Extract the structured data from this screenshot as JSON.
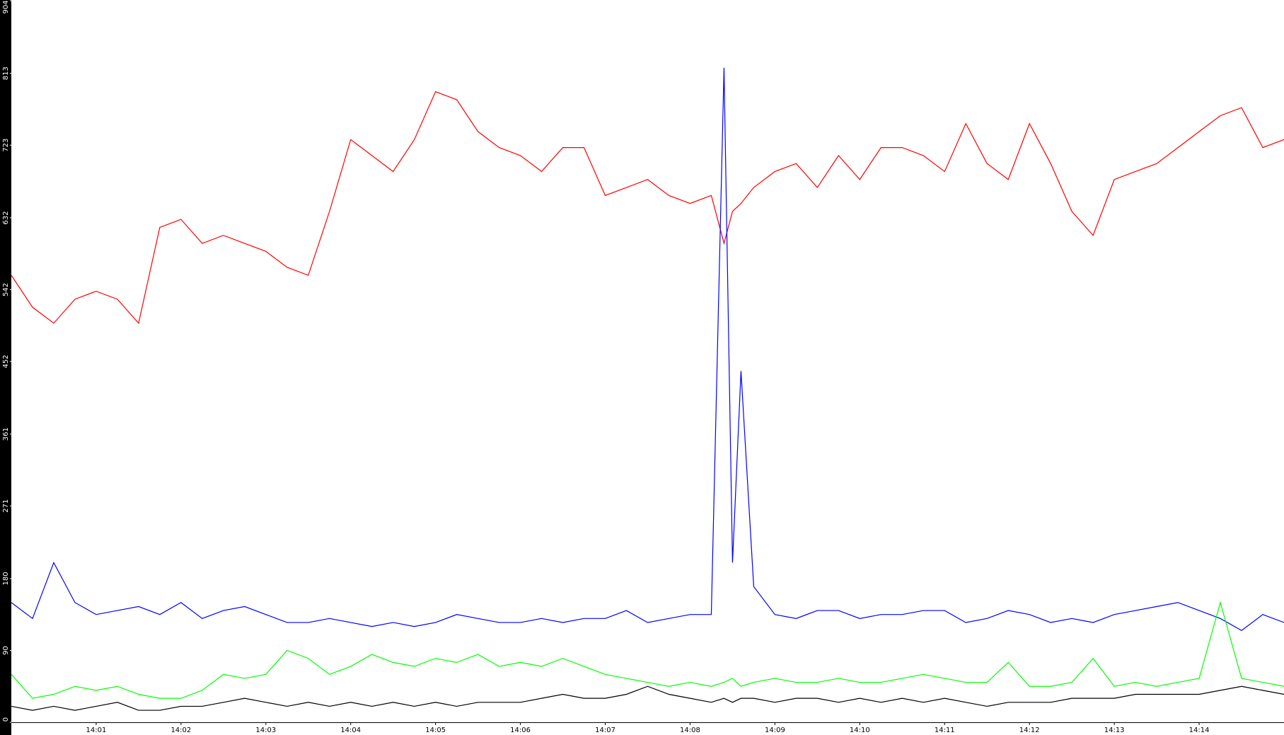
{
  "chart_data": {
    "type": "line",
    "x": [
      0,
      0.25,
      0.5,
      0.75,
      1,
      1.25,
      1.5,
      1.75,
      2,
      2.25,
      2.5,
      2.75,
      3,
      3.25,
      3.5,
      3.75,
      4,
      4.25,
      4.5,
      4.75,
      5,
      5.25,
      5.5,
      5.75,
      6,
      6.25,
      6.5,
      6.75,
      7,
      7.25,
      7.5,
      7.75,
      8,
      8.25,
      8.4,
      8.5,
      8.6,
      8.75,
      9,
      9.25,
      9.5,
      9.75,
      10,
      10.25,
      10.5,
      10.75,
      11,
      11.25,
      11.5,
      11.75,
      12,
      12.25,
      12.5,
      12.75,
      13,
      13.25,
      13.5,
      13.75,
      14,
      14.25,
      14.5,
      14.75,
      15
    ],
    "xlim": [
      0,
      15
    ],
    "xticks": [
      {
        "value": 1,
        "label": "14:01"
      },
      {
        "value": 2,
        "label": "14:02"
      },
      {
        "value": 3,
        "label": "14:03"
      },
      {
        "value": 4,
        "label": "14:04"
      },
      {
        "value": 5,
        "label": "14:05"
      },
      {
        "value": 6,
        "label": "14:06"
      },
      {
        "value": 7,
        "label": "14:07"
      },
      {
        "value": 8,
        "label": "14:08"
      },
      {
        "value": 9,
        "label": "14:09"
      },
      {
        "value": 10,
        "label": "14:10"
      },
      {
        "value": 11,
        "label": "14:11"
      },
      {
        "value": 12,
        "label": "14:12"
      },
      {
        "value": 13,
        "label": "14:13"
      },
      {
        "value": 14,
        "label": "14:14"
      }
    ],
    "ylim": [
      0,
      904
    ],
    "yticks": [
      0,
      90,
      180,
      271,
      361,
      452,
      542,
      632,
      723,
      813,
      904
    ],
    "grid": false,
    "series": [
      {
        "color": "#ff0000",
        "values": [
          560,
          520,
          500,
          530,
          540,
          530,
          500,
          620,
          630,
          600,
          610,
          600,
          590,
          570,
          560,
          640,
          730,
          710,
          690,
          730,
          790,
          780,
          740,
          720,
          710,
          690,
          720,
          720,
          660,
          670,
          680,
          660,
          650,
          660,
          600,
          640,
          650,
          670,
          690,
          700,
          670,
          710,
          680,
          720,
          720,
          710,
          690,
          750,
          700,
          680,
          750,
          700,
          640,
          610,
          680,
          690,
          700,
          720,
          740,
          760,
          770,
          720,
          730
        ]
      },
      {
        "color": "#0000ff",
        "values": [
          150,
          130,
          200,
          150,
          135,
          140,
          145,
          135,
          150,
          130,
          140,
          145,
          135,
          125,
          125,
          130,
          125,
          120,
          125,
          120,
          125,
          135,
          130,
          125,
          125,
          130,
          125,
          130,
          130,
          140,
          125,
          130,
          135,
          135,
          820,
          200,
          440,
          170,
          135,
          130,
          140,
          140,
          130,
          135,
          135,
          140,
          140,
          125,
          130,
          140,
          135,
          125,
          130,
          125,
          135,
          140,
          145,
          150,
          140,
          130,
          115,
          135,
          125
        ]
      },
      {
        "color": "#00ff00",
        "values": [
          60,
          30,
          35,
          45,
          40,
          45,
          35,
          30,
          30,
          40,
          60,
          55,
          60,
          90,
          80,
          60,
          70,
          85,
          75,
          70,
          80,
          75,
          85,
          70,
          75,
          70,
          80,
          70,
          60,
          55,
          50,
          45,
          50,
          45,
          50,
          55,
          45,
          50,
          55,
          50,
          50,
          55,
          50,
          50,
          55,
          60,
          55,
          50,
          50,
          75,
          45,
          45,
          50,
          80,
          45,
          50,
          45,
          50,
          55,
          150,
          55,
          50,
          45
        ]
      },
      {
        "color": "#000000",
        "values": [
          20,
          15,
          20,
          15,
          20,
          25,
          15,
          15,
          20,
          20,
          25,
          30,
          25,
          20,
          25,
          20,
          25,
          20,
          25,
          20,
          25,
          20,
          25,
          25,
          25,
          30,
          35,
          30,
          30,
          35,
          45,
          35,
          30,
          25,
          30,
          25,
          30,
          30,
          25,
          30,
          30,
          25,
          30,
          25,
          30,
          25,
          30,
          25,
          20,
          25,
          25,
          25,
          30,
          30,
          30,
          35,
          35,
          35,
          35,
          40,
          45,
          40,
          35
        ]
      }
    ]
  }
}
